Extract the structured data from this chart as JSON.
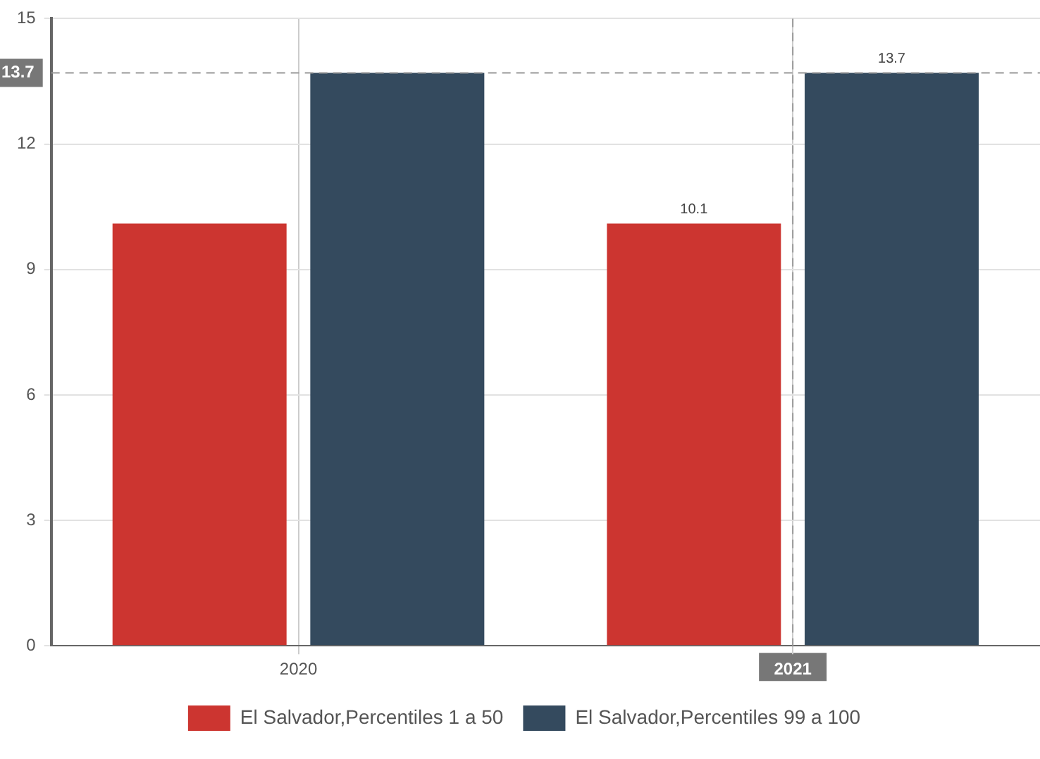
{
  "chart_data": {
    "type": "bar",
    "categories": [
      "2020",
      "2021"
    ],
    "series": [
      {
        "name": "El Salvador,Percentiles 1 a 50",
        "color": "#cc3530",
        "values": [
          10.1,
          10.1
        ],
        "value_labels": [
          null,
          "10.1"
        ]
      },
      {
        "name": "El Salvador,Percentiles 99 a 100",
        "color": "#344a5e",
        "values": [
          13.7,
          13.7
        ],
        "value_labels": [
          null,
          "13.7"
        ]
      }
    ],
    "ylim": [
      0,
      15
    ],
    "yticks": [
      0,
      3,
      6,
      9,
      12,
      15
    ],
    "grid": true,
    "legend": "bottom",
    "ref_lines": [
      {
        "axis": "y",
        "value": 13.7,
        "label": "13.7",
        "line_style": "dashed"
      },
      {
        "axis": "x",
        "value": "2021",
        "label": null,
        "line_style": "dashed"
      }
    ]
  }
}
